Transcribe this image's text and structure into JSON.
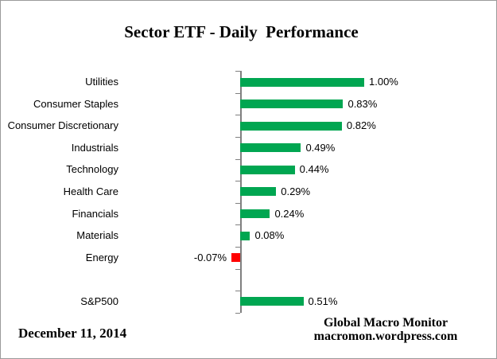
{
  "title": "Sector ETF - Daily  Performance",
  "footer": {
    "date": "December 11, 2014",
    "attribution_line1": "Global Macro Monitor",
    "attribution_line2": "macromon.wordpress.com"
  },
  "colors": {
    "positive_bar": "#00A651",
    "negative_bar": "#FF0000",
    "axis": "#808080",
    "background": "#FFFFFF",
    "border": "#9B9B9B"
  },
  "chart_data": {
    "type": "bar",
    "orientation": "horizontal",
    "title": "Sector ETF - Daily  Performance",
    "xlabel": "",
    "ylabel": "",
    "grid": false,
    "legend": false,
    "value_axis_ticks_visible": false,
    "categories": [
      "Utilities",
      "Consumer Staples",
      "Consumer Discretionary",
      "Industrials",
      "Technology",
      "Health Care",
      "Financials",
      "Materials",
      "Energy",
      "",
      "S&P500"
    ],
    "values": [
      1.0,
      0.83,
      0.82,
      0.49,
      0.44,
      0.29,
      0.24,
      0.08,
      -0.07,
      null,
      0.51
    ],
    "data_labels": [
      "1.00%",
      "0.83%",
      "0.82%",
      "0.49%",
      "0.44%",
      "0.29%",
      "0.24%",
      "0.08%",
      "-0.07%",
      "",
      "0.51%"
    ],
    "units": "percent",
    "xlim": [
      -0.2,
      1.1
    ]
  }
}
